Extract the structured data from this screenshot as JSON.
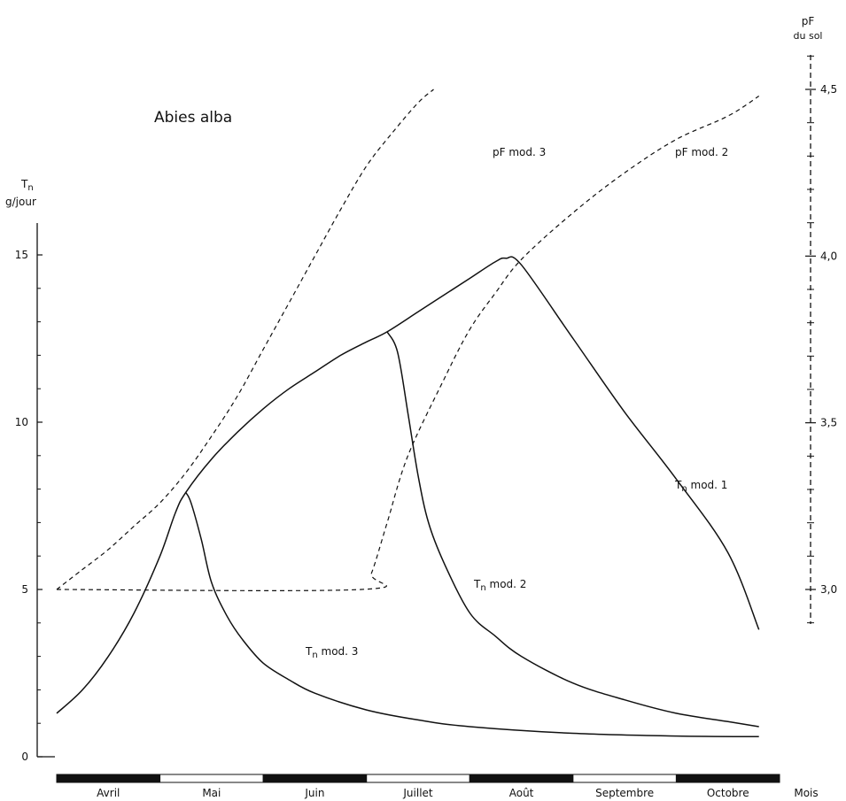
{
  "chart_data": {
    "type": "line",
    "title": "Abies alba",
    "y_left": {
      "label_line1": "Tn",
      "label_line2": "g/jour",
      "ticks": [
        "0",
        "5",
        "10",
        "15"
      ],
      "range": [
        0,
        15.5
      ]
    },
    "y_right": {
      "label_line1": "pF",
      "label_line2": "du sol",
      "ticks": [
        "3,0",
        "3,5",
        "4,0",
        "4,5"
      ],
      "range": [
        2.9,
        4.6
      ]
    },
    "x_axis": {
      "months": [
        "Avril",
        "Mai",
        "Juin",
        "Juillet",
        "Août",
        "Septembre",
        "Octobre"
      ],
      "unit_label": "Mois",
      "range": [
        0,
        7
      ]
    },
    "series": [
      {
        "name": "Tn mod. 1",
        "axis": "left",
        "style": "solid",
        "points": [
          [
            0,
            1.3
          ],
          [
            0.25,
            2.0
          ],
          [
            0.5,
            3.0
          ],
          [
            0.75,
            4.3
          ],
          [
            1.0,
            6.0
          ],
          [
            1.15,
            7.3
          ],
          [
            1.25,
            7.9
          ],
          [
            1.5,
            8.9
          ],
          [
            1.75,
            9.7
          ],
          [
            2.0,
            10.4
          ],
          [
            2.25,
            11.0
          ],
          [
            2.5,
            11.5
          ],
          [
            2.75,
            12.0
          ],
          [
            3.0,
            12.4
          ],
          [
            3.2,
            12.7
          ],
          [
            3.5,
            13.3
          ],
          [
            3.75,
            13.8
          ],
          [
            4.0,
            14.3
          ],
          [
            4.25,
            14.8
          ],
          [
            4.35,
            14.9
          ],
          [
            4.5,
            14.7
          ],
          [
            5.0,
            12.5
          ],
          [
            5.5,
            10.3
          ],
          [
            6.0,
            8.3
          ],
          [
            6.5,
            6.1
          ],
          [
            6.8,
            3.8
          ]
        ]
      },
      {
        "name": "Tn mod. 2",
        "axis": "left",
        "style": "solid",
        "points": [
          [
            3.2,
            12.7
          ],
          [
            3.3,
            12.1
          ],
          [
            3.4,
            10.3
          ],
          [
            3.5,
            8.4
          ],
          [
            3.6,
            7.0
          ],
          [
            3.75,
            5.8
          ],
          [
            4.0,
            4.3
          ],
          [
            4.25,
            3.6
          ],
          [
            4.5,
            3.0
          ],
          [
            5.0,
            2.2
          ],
          [
            5.5,
            1.7
          ],
          [
            6.0,
            1.3
          ],
          [
            6.5,
            1.05
          ],
          [
            6.8,
            0.9
          ]
        ]
      },
      {
        "name": "Tn mod. 3",
        "axis": "left",
        "style": "solid",
        "points": [
          [
            1.25,
            7.9
          ],
          [
            1.3,
            7.6
          ],
          [
            1.4,
            6.5
          ],
          [
            1.5,
            5.2
          ],
          [
            1.65,
            4.2
          ],
          [
            1.8,
            3.5
          ],
          [
            2.0,
            2.8
          ],
          [
            2.25,
            2.3
          ],
          [
            2.5,
            1.9
          ],
          [
            3.0,
            1.4
          ],
          [
            3.5,
            1.1
          ],
          [
            4.0,
            0.9
          ],
          [
            5.0,
            0.7
          ],
          [
            6.0,
            0.62
          ],
          [
            6.8,
            0.6
          ]
        ]
      },
      {
        "name": "pF mod. 2",
        "axis": "right",
        "style": "dashed",
        "points": [
          [
            0,
            3.0
          ],
          [
            2.95,
            3.0
          ],
          [
            3.05,
            3.05
          ],
          [
            3.2,
            3.2
          ],
          [
            3.4,
            3.4
          ],
          [
            3.75,
            3.63
          ],
          [
            4.0,
            3.78
          ],
          [
            4.25,
            3.89
          ],
          [
            4.5,
            3.99
          ],
          [
            5.0,
            4.13
          ],
          [
            5.5,
            4.25
          ],
          [
            6.0,
            4.35
          ],
          [
            6.5,
            4.42
          ],
          [
            6.8,
            4.48
          ]
        ]
      },
      {
        "name": "pF mod. 3",
        "axis": "right",
        "style": "dashed",
        "points": [
          [
            0,
            3.0
          ],
          [
            0.25,
            3.06
          ],
          [
            0.5,
            3.12
          ],
          [
            0.75,
            3.19
          ],
          [
            1.0,
            3.26
          ],
          [
            1.25,
            3.35
          ],
          [
            1.5,
            3.46
          ],
          [
            1.75,
            3.58
          ],
          [
            2.0,
            3.72
          ],
          [
            2.25,
            3.86
          ],
          [
            2.5,
            4.0
          ],
          [
            2.75,
            4.14
          ],
          [
            3.0,
            4.27
          ],
          [
            3.25,
            4.37
          ],
          [
            3.5,
            4.46
          ],
          [
            3.65,
            4.5
          ]
        ]
      }
    ],
    "annotations": [
      {
        "series": "pF mod. 3",
        "text_main": "pF mod. 3",
        "sub": ""
      },
      {
        "series": "pF mod. 2",
        "text_main": "pF mod. 2",
        "sub": ""
      },
      {
        "series": "Tn mod. 1",
        "text_main": "T",
        "sub": "n",
        "rest": " mod. 1"
      },
      {
        "series": "Tn mod. 2",
        "text_main": "T",
        "sub": "n",
        "rest": " mod. 2"
      },
      {
        "series": "Tn mod. 3",
        "text_main": "T",
        "sub": "n",
        "rest": " mod. 3"
      }
    ],
    "grid": false
  }
}
